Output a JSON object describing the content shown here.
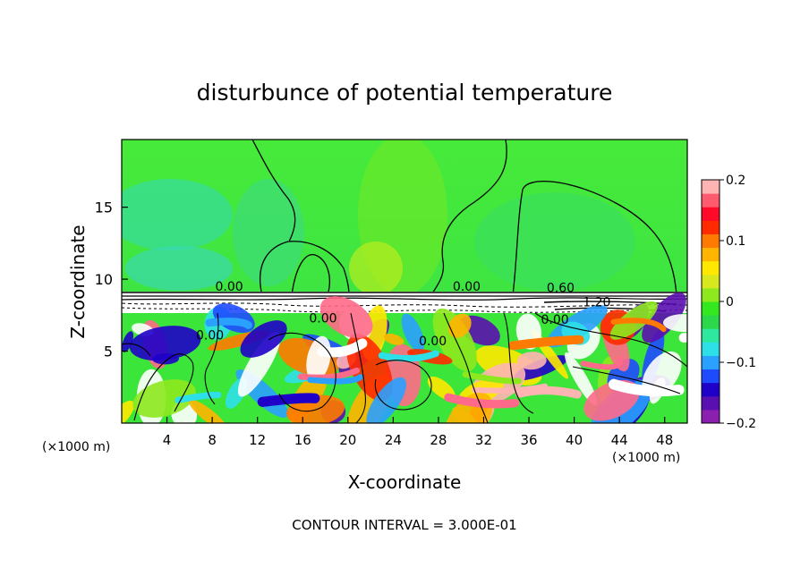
{
  "chart_data": {
    "type": "heatmap",
    "title": "disturbunce of potential temperature",
    "xlabel": "X-coordinate",
    "ylabel": "Z-coordinate",
    "x_unit": "(×1000 m)",
    "footer": "CONTOUR INTERVAL = 3.000E-01",
    "xlim": [
      0,
      50
    ],
    "ylim": [
      0,
      19.7
    ],
    "x_ticks": [
      4,
      8,
      12,
      16,
      20,
      24,
      28,
      32,
      36,
      40,
      44,
      48
    ],
    "y_ticks": [
      5,
      10,
      15
    ],
    "colorbar": {
      "range": [
        -0.2,
        0.2
      ],
      "tick_values": [
        0.2,
        0.1,
        0,
        -0.1,
        -0.2
      ],
      "tick_labels": [
        "0.2",
        "0.1",
        "0",
        "−0.1",
        "−0.2"
      ],
      "colors": [
        "#8a1fb0",
        "#5a0fb0",
        "#1f00c8",
        "#1f4bff",
        "#2aa0ff",
        "#2de0e8",
        "#2ee8a0",
        "#2bd84a",
        "#33e81e",
        "#8de81e",
        "#d8e81e",
        "#ffe800",
        "#ffb400",
        "#ff7a00",
        "#ff2a00",
        "#ff0a28",
        "#ff5a6e",
        "#ffb4b4"
      ]
    },
    "contour_labels": [
      {
        "text": "0.00",
        "x": 9.5,
        "z": 9.2
      },
      {
        "text": "0.00",
        "x": 30.5,
        "z": 9.2
      },
      {
        "text": "0.60",
        "x": 38.8,
        "z": 9.1
      },
      {
        "text": "1.20",
        "x": 42,
        "z": 8.1
      },
      {
        "text": "0.00",
        "x": 38.3,
        "z": 6.9
      },
      {
        "text": "0.00",
        "x": 17.8,
        "z": 7.0
      },
      {
        "text": "0.00",
        "x": 7.8,
        "z": 5.8
      },
      {
        "text": "0.00",
        "x": 27.5,
        "z": 5.4
      }
    ]
  }
}
